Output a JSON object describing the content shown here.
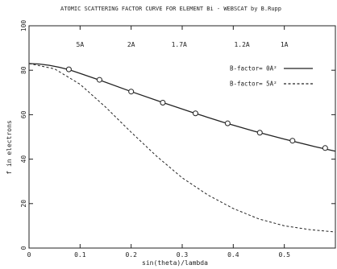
{
  "chart_data": {
    "type": "line",
    "title": "ATOMIC SCATTERING FACTOR CURVE FOR ELEMENT Bi  -  WEBSCAT by B.Rupp",
    "xlabel": "sin(theta)/lambda",
    "ylabel": "f in electrons",
    "xlim": [
      0,
      0.6
    ],
    "ylim": [
      0,
      100
    ],
    "x_ticks": [
      "0",
      "0.1",
      "0.2",
      "0.3",
      "0.4",
      "0.5"
    ],
    "y_ticks": [
      "0",
      "20",
      "40",
      "60",
      "80",
      "100"
    ],
    "resolution_labels": [
      {
        "label": "5A",
        "x": 0.1
      },
      {
        "label": "2A",
        "x": 0.2
      },
      {
        "label": "1.7A",
        "x": 0.294
      },
      {
        "label": "1.2A",
        "x": 0.417
      },
      {
        "label": "1A",
        "x": 0.5
      }
    ],
    "series": [
      {
        "name": "B-factor= 0A²",
        "style": "solid",
        "marker": "circle",
        "x": [
          0,
          0.02,
          0.04,
          0.06,
          0.08,
          0.1,
          0.14,
          0.2,
          0.26,
          0.32,
          0.38,
          0.44,
          0.5,
          0.56,
          0.6
        ],
        "y": [
          83,
          82.8,
          82.2,
          81.3,
          80.1,
          78.6,
          75.4,
          70.4,
          65.6,
          61.0,
          56.6,
          52.6,
          49.0,
          45.6,
          43.6
        ]
      },
      {
        "name": "B-factor= 5A²",
        "style": "dashed",
        "x": [
          0,
          0.05,
          0.1,
          0.15,
          0.2,
          0.25,
          0.3,
          0.35,
          0.4,
          0.45,
          0.5,
          0.55,
          0.6
        ],
        "y": [
          83,
          80.6,
          73.7,
          63.4,
          52.1,
          41.3,
          31.6,
          23.9,
          17.8,
          13.1,
          10.0,
          8.3,
          7.2
        ]
      }
    ],
    "markers": {
      "x": [
        0.078,
        0.138,
        0.2,
        0.262,
        0.326,
        0.389,
        0.452,
        0.516,
        0.58
      ],
      "y": [
        80.4,
        75.7,
        70.4,
        65.4,
        60.6,
        56.1,
        51.9,
        48.3,
        45.0
      ]
    },
    "colors": {
      "line": "#222222",
      "background": "#ffffff"
    }
  }
}
